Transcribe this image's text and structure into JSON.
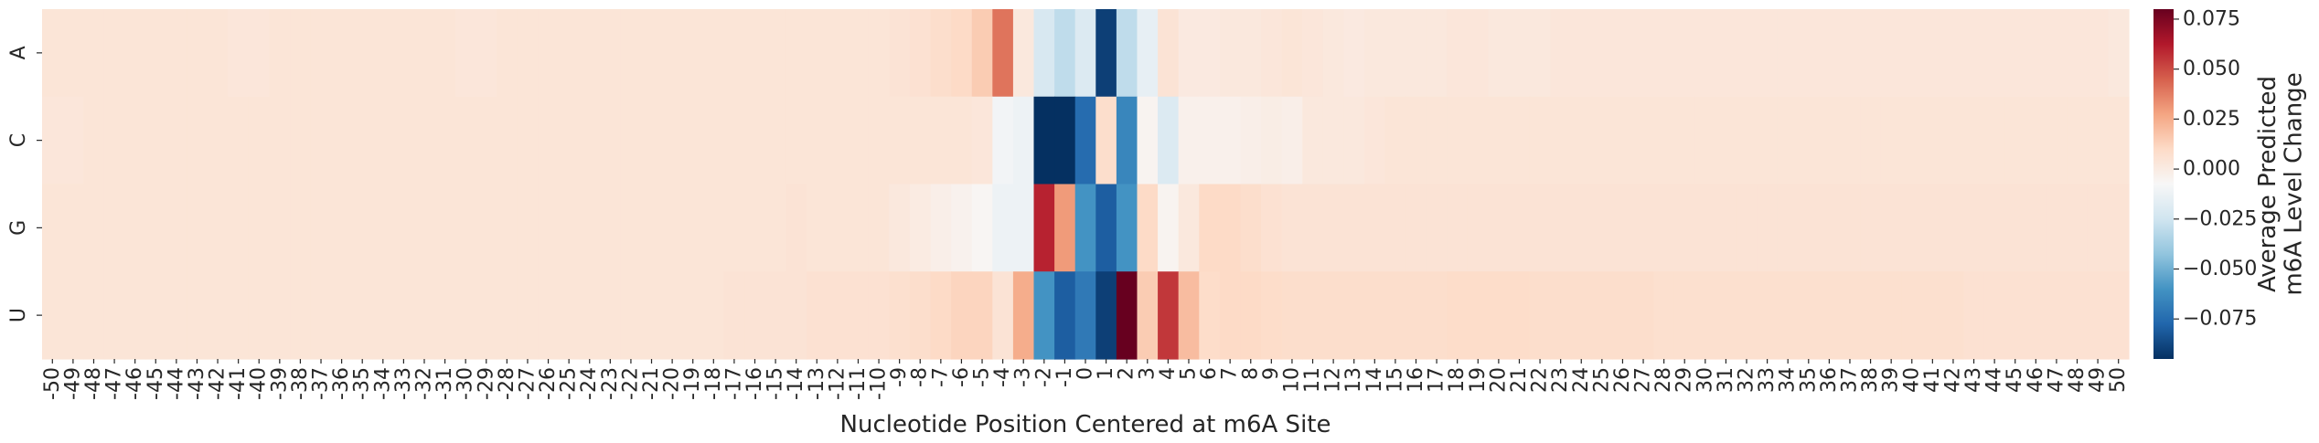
{
  "chart_data": {
    "type": "heatmap",
    "title": "",
    "xlabel": "Nucleotide Position Centered at m6A Site",
    "ylabel": "",
    "rows": [
      "A",
      "C",
      "G",
      "U"
    ],
    "columns": [
      -50,
      -49,
      -48,
      -47,
      -46,
      -45,
      -44,
      -43,
      -42,
      -41,
      -40,
      -39,
      -38,
      -37,
      -36,
      -35,
      -34,
      -33,
      -32,
      -31,
      -30,
      -29,
      -28,
      -27,
      -26,
      -25,
      -24,
      -23,
      -22,
      -21,
      -20,
      -19,
      -18,
      -17,
      -16,
      -15,
      -14,
      -13,
      -12,
      -11,
      -10,
      -9,
      -8,
      -7,
      -6,
      -5,
      -4,
      -3,
      -2,
      -1,
      0,
      1,
      2,
      3,
      4,
      5,
      6,
      7,
      8,
      9,
      10,
      11,
      12,
      13,
      14,
      15,
      16,
      17,
      18,
      19,
      20,
      21,
      22,
      23,
      24,
      25,
      26,
      27,
      28,
      29,
      30,
      31,
      32,
      33,
      34,
      35,
      36,
      37,
      38,
      39,
      40,
      41,
      42,
      43,
      44,
      45,
      46,
      47,
      48,
      49,
      50
    ],
    "values": {
      "A": [
        0.004,
        0.004,
        0.004,
        0.004,
        0.004,
        0.004,
        0.004,
        0.004,
        0.004,
        0.003,
        0.003,
        0.004,
        0.004,
        0.004,
        0.004,
        0.004,
        0.004,
        0.004,
        0.004,
        0.004,
        0.003,
        0.003,
        0.004,
        0.004,
        0.004,
        0.004,
        0.004,
        0.004,
        0.004,
        0.004,
        0.004,
        0.004,
        0.004,
        0.004,
        0.004,
        0.004,
        0.004,
        0.004,
        0.004,
        0.004,
        0.004,
        0.005,
        0.006,
        0.008,
        0.01,
        0.015,
        0.04,
        0.002,
        -0.022,
        -0.03,
        -0.02,
        -0.09,
        -0.03,
        -0.015,
        0.005,
        0.001,
        0.001,
        0.002,
        0.002,
        0.003,
        0.004,
        0.003,
        0.002,
        0.001,
        0.002,
        0.002,
        0.002,
        0.002,
        0.003,
        0.003,
        0.002,
        0.002,
        0.002,
        0.003,
        0.003,
        0.003,
        0.003,
        0.003,
        0.003,
        0.003,
        0.003,
        0.003,
        0.003,
        0.003,
        0.003,
        0.003,
        0.003,
        0.003,
        0.003,
        0.003,
        0.003,
        0.003,
        0.003,
        0.003,
        0.003,
        0.003,
        0.003,
        0.003,
        0.003,
        0.003,
        0.002
      ],
      "C": [
        0.003,
        0.003,
        0.004,
        0.004,
        0.004,
        0.004,
        0.004,
        0.004,
        0.004,
        0.004,
        0.004,
        0.004,
        0.004,
        0.004,
        0.004,
        0.004,
        0.004,
        0.004,
        0.004,
        0.004,
        0.004,
        0.004,
        0.004,
        0.004,
        0.004,
        0.004,
        0.004,
        0.004,
        0.004,
        0.004,
        0.004,
        0.004,
        0.004,
        0.004,
        0.004,
        0.004,
        0.004,
        0.004,
        0.004,
        0.004,
        0.004,
        0.004,
        0.004,
        0.004,
        0.004,
        0.003,
        -0.01,
        -0.012,
        -0.1,
        -0.095,
        -0.075,
        0.008,
        -0.065,
        -0.005,
        -0.02,
        -0.003,
        -0.003,
        -0.003,
        -0.002,
        -0.001,
        -0.002,
        0.002,
        0.002,
        0.002,
        0.003,
        0.004,
        0.004,
        0.004,
        0.004,
        0.004,
        0.004,
        0.004,
        0.004,
        0.004,
        0.004,
        0.004,
        0.004,
        0.004,
        0.004,
        0.004,
        0.004,
        0.004,
        0.004,
        0.004,
        0.004,
        0.004,
        0.004,
        0.004,
        0.004,
        0.004,
        0.004,
        0.004,
        0.004,
        0.004,
        0.004,
        0.004,
        0.004,
        0.004,
        0.004,
        0.004,
        0.004
      ],
      "G": [
        0.004,
        0.004,
        0.004,
        0.004,
        0.004,
        0.004,
        0.004,
        0.004,
        0.004,
        0.004,
        0.004,
        0.004,
        0.004,
        0.004,
        0.004,
        0.004,
        0.004,
        0.004,
        0.004,
        0.004,
        0.004,
        0.004,
        0.004,
        0.004,
        0.004,
        0.004,
        0.004,
        0.004,
        0.004,
        0.004,
        0.004,
        0.004,
        0.004,
        0.004,
        0.004,
        0.004,
        0.005,
        0.004,
        0.004,
        0.004,
        0.004,
        0.002,
        0.0,
        -0.002,
        -0.004,
        -0.006,
        -0.012,
        -0.012,
        0.06,
        0.03,
        -0.06,
        -0.08,
        -0.06,
        0.01,
        -0.005,
        0.002,
        0.01,
        0.01,
        0.008,
        0.006,
        0.005,
        0.005,
        0.005,
        0.005,
        0.005,
        0.005,
        0.005,
        0.005,
        0.005,
        0.005,
        0.005,
        0.005,
        0.005,
        0.005,
        0.005,
        0.005,
        0.005,
        0.005,
        0.005,
        0.005,
        0.005,
        0.005,
        0.005,
        0.005,
        0.005,
        0.005,
        0.005,
        0.005,
        0.005,
        0.005,
        0.005,
        0.005,
        0.005,
        0.005,
        0.005,
        0.005,
        0.005,
        0.005,
        0.005,
        0.005,
        0.005
      ],
      "U": [
        0.004,
        0.004,
        0.004,
        0.004,
        0.004,
        0.004,
        0.004,
        0.004,
        0.004,
        0.004,
        0.004,
        0.004,
        0.004,
        0.004,
        0.004,
        0.004,
        0.004,
        0.004,
        0.004,
        0.004,
        0.004,
        0.004,
        0.004,
        0.004,
        0.004,
        0.004,
        0.004,
        0.004,
        0.004,
        0.004,
        0.004,
        0.004,
        0.004,
        0.005,
        0.005,
        0.005,
        0.005,
        0.006,
        0.006,
        0.006,
        0.006,
        0.007,
        0.008,
        0.01,
        0.012,
        0.012,
        0.005,
        0.025,
        -0.06,
        -0.08,
        -0.07,
        -0.09,
        0.085,
        0.015,
        0.055,
        0.02,
        0.009,
        0.01,
        0.01,
        0.009,
        0.008,
        0.008,
        0.008,
        0.008,
        0.008,
        0.008,
        0.008,
        0.008,
        0.009,
        0.009,
        0.009,
        0.009,
        0.008,
        0.008,
        0.008,
        0.008,
        0.008,
        0.008,
        0.007,
        0.007,
        0.007,
        0.007,
        0.007,
        0.007,
        0.007,
        0.007,
        0.007,
        0.007,
        0.007,
        0.007,
        0.007,
        0.007,
        0.007,
        0.006,
        0.006,
        0.006,
        0.006,
        0.006,
        0.006,
        0.006,
        0.006
      ]
    },
    "colorbar": {
      "label_lines": [
        "Average Predicted",
        "m6A Level Change"
      ],
      "vmin": -0.095,
      "vmax": 0.08,
      "ticks": [
        -0.075,
        -0.05,
        -0.025,
        0.0,
        0.025,
        0.05,
        0.075
      ],
      "tick_labels": [
        "−0.075",
        "−0.050",
        "−0.025",
        "0.000",
        "0.025",
        "0.050",
        "0.075"
      ],
      "colormap": "RdBu_r",
      "colors": [
        "#053061",
        "#2166ac",
        "#4393c3",
        "#92c5de",
        "#d1e5f0",
        "#f7f7f7",
        "#fddbc7",
        "#f4a582",
        "#d6604d",
        "#b2182b",
        "#67001f"
      ]
    },
    "grid": false,
    "legend": "colorbar-right"
  }
}
